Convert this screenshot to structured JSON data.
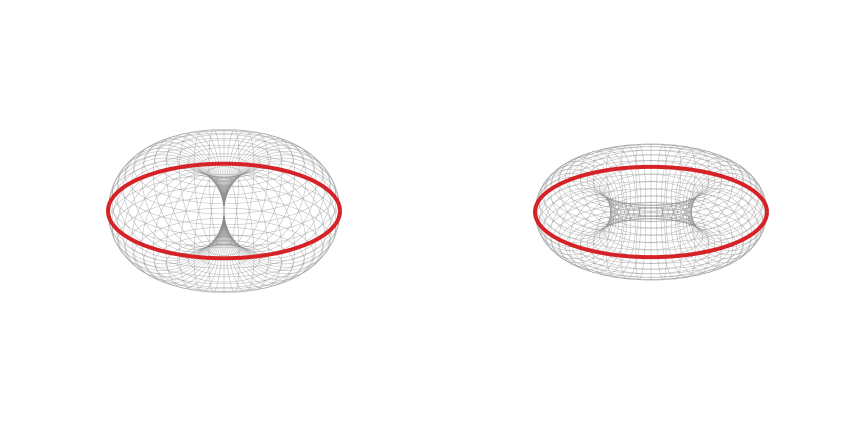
{
  "figure": {
    "panels": [
      {
        "kind": "horn-torus",
        "wireframe_color": "#8c8c8c",
        "highlight_color": "#d62226"
      },
      {
        "kind": "ring-torus",
        "wireframe_color": "#8c8c8c",
        "highlight_color": "#d62226"
      }
    ]
  }
}
